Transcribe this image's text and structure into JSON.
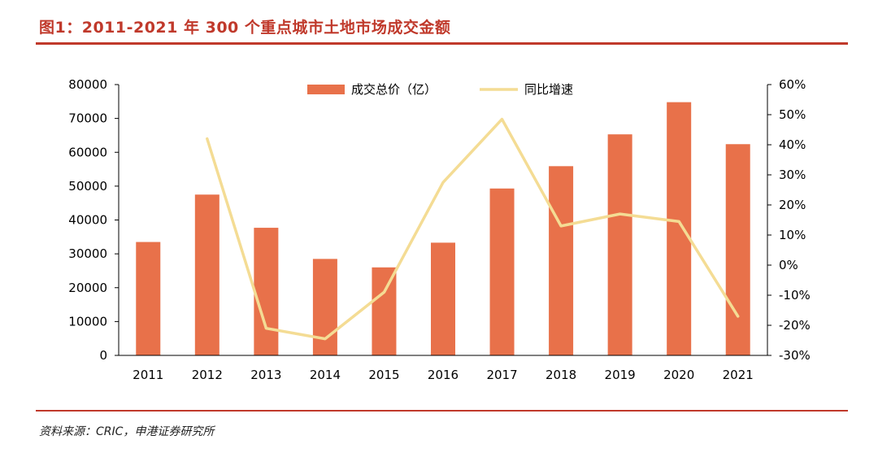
{
  "figure": {
    "title": "图1：2011-2021 年 300 个重点城市土地市场成交金额",
    "source": "资料来源：CRIC，申港证券研究所"
  },
  "chart_data": {
    "type": "bar",
    "categories": [
      "2011",
      "2012",
      "2013",
      "2014",
      "2015",
      "2016",
      "2017",
      "2018",
      "2019",
      "2020",
      "2021"
    ],
    "series": [
      {
        "name": "成交总价（亿）",
        "type": "bar",
        "axis": "left",
        "color": "#e8714a",
        "values": [
          33500,
          47500,
          37700,
          28500,
          26000,
          33300,
          49300,
          55900,
          65300,
          74800,
          62400
        ]
      },
      {
        "name": "同比增速",
        "type": "line",
        "axis": "right",
        "color": "#f4dc94",
        "values": [
          null,
          42,
          -21,
          -24.5,
          -9,
          27.5,
          48.5,
          13,
          17,
          14.5,
          -17
        ]
      }
    ],
    "y_left": {
      "lim": [
        0,
        80000
      ],
      "ticks": [
        "0",
        "10000",
        "20000",
        "30000",
        "40000",
        "50000",
        "60000",
        "70000",
        "80000"
      ]
    },
    "y_right": {
      "lim": [
        -30,
        60
      ],
      "ticks": [
        "-30%",
        "-20%",
        "-10%",
        "0%",
        "10%",
        "20%",
        "30%",
        "40%",
        "50%",
        "60%"
      ]
    },
    "legend": "top-center",
    "grid": false
  }
}
